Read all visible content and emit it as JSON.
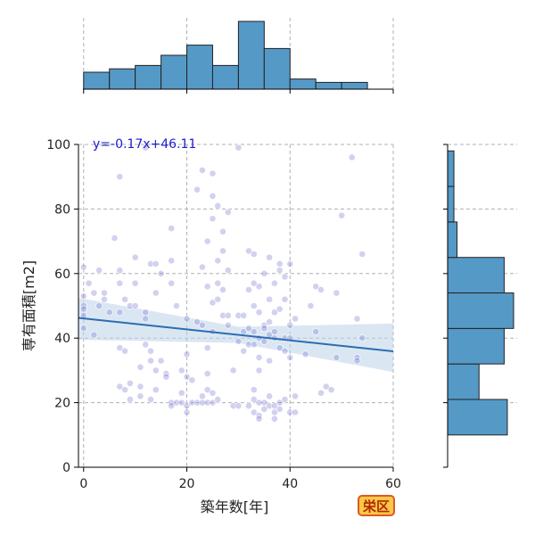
{
  "chart_data": {
    "type": "scatter",
    "xlabel": "築年数[年]",
    "ylabel": "専有面積[m2]",
    "xlim": [
      -1,
      60
    ],
    "ylim": [
      0,
      100
    ],
    "xticks": [
      "0",
      "20",
      "40",
      "60"
    ],
    "yticks": [
      "0",
      "20",
      "40",
      "60",
      "80",
      "100"
    ],
    "grid": true,
    "regression": {
      "label": "y=-0.17x+46.11",
      "slope": -0.17,
      "intercept": 46.11,
      "ci_band": [
        [
          -1,
          52.5,
          39.5
        ],
        [
          30,
          43.5,
          38.5
        ],
        [
          60,
          44.5,
          29.5
        ]
      ]
    },
    "marginal_x_hist": {
      "bins": [
        0,
        5,
        10,
        15,
        20,
        25,
        30,
        35,
        40,
        45,
        50,
        55
      ],
      "counts": [
        5,
        6,
        7,
        10,
        13,
        7,
        20,
        12,
        3,
        2,
        2
      ]
    },
    "marginal_y_hist": {
      "bins": [
        10,
        21,
        32,
        43,
        54,
        65,
        76,
        87,
        98
      ],
      "counts": [
        19,
        10,
        18,
        21,
        18,
        3,
        2,
        2
      ]
    },
    "points": [
      [
        0,
        62
      ],
      [
        0,
        53
      ],
      [
        0,
        50
      ],
      [
        0,
        49
      ],
      [
        0,
        47
      ],
      [
        0,
        43
      ],
      [
        1,
        57
      ],
      [
        2,
        41
      ],
      [
        2,
        54
      ],
      [
        3,
        61
      ],
      [
        3,
        50
      ],
      [
        4,
        54
      ],
      [
        4,
        52
      ],
      [
        5,
        48
      ],
      [
        6,
        71
      ],
      [
        7,
        90
      ],
      [
        7,
        61
      ],
      [
        7,
        57
      ],
      [
        7,
        48
      ],
      [
        7,
        37
      ],
      [
        7,
        25
      ],
      [
        8,
        52
      ],
      [
        8,
        36
      ],
      [
        8,
        24
      ],
      [
        9,
        50
      ],
      [
        9,
        26
      ],
      [
        9,
        21
      ],
      [
        10,
        65
      ],
      [
        10,
        57
      ],
      [
        10,
        50
      ],
      [
        11,
        31
      ],
      [
        11,
        25
      ],
      [
        11,
        22
      ],
      [
        12,
        99
      ],
      [
        12,
        48
      ],
      [
        12,
        46
      ],
      [
        12,
        38
      ],
      [
        13,
        63
      ],
      [
        13,
        36
      ],
      [
        13,
        33
      ],
      [
        13,
        21
      ],
      [
        14,
        63
      ],
      [
        14,
        54
      ],
      [
        14,
        30
      ],
      [
        14,
        24
      ],
      [
        15,
        60
      ],
      [
        15,
        33
      ],
      [
        16,
        29
      ],
      [
        16,
        28
      ],
      [
        17,
        74
      ],
      [
        17,
        64
      ],
      [
        17,
        57
      ],
      [
        17,
        20
      ],
      [
        17,
        19
      ],
      [
        18,
        50
      ],
      [
        18,
        20
      ],
      [
        19,
        30
      ],
      [
        19,
        23
      ],
      [
        19,
        20
      ],
      [
        20,
        46
      ],
      [
        20,
        35
      ],
      [
        20,
        28
      ],
      [
        20,
        19
      ],
      [
        20,
        17
      ],
      [
        21,
        27
      ],
      [
        21,
        20
      ],
      [
        22,
        86
      ],
      [
        22,
        45
      ],
      [
        22,
        20
      ],
      [
        23,
        92
      ],
      [
        23,
        62
      ],
      [
        23,
        44
      ],
      [
        23,
        22
      ],
      [
        23,
        20
      ],
      [
        24,
        70
      ],
      [
        24,
        56
      ],
      [
        24,
        37
      ],
      [
        24,
        29
      ],
      [
        24,
        24
      ],
      [
        24,
        20
      ],
      [
        25,
        91
      ],
      [
        25,
        84
      ],
      [
        25,
        77
      ],
      [
        25,
        51
      ],
      [
        25,
        42
      ],
      [
        25,
        23
      ],
      [
        25,
        20
      ],
      [
        26,
        81
      ],
      [
        26,
        64
      ],
      [
        26,
        57
      ],
      [
        26,
        52
      ],
      [
        26,
        21
      ],
      [
        27,
        73
      ],
      [
        27,
        67
      ],
      [
        27,
        55
      ],
      [
        27,
        47
      ],
      [
        28,
        79
      ],
      [
        28,
        61
      ],
      [
        28,
        47
      ],
      [
        28,
        44
      ],
      [
        29,
        30
      ],
      [
        29,
        19
      ],
      [
        30,
        99
      ],
      [
        30,
        47
      ],
      [
        30,
        39
      ],
      [
        30,
        19
      ],
      [
        31,
        47
      ],
      [
        31,
        42
      ],
      [
        31,
        36
      ],
      [
        32,
        67
      ],
      [
        32,
        55
      ],
      [
        32,
        43
      ],
      [
        32,
        38
      ],
      [
        32,
        19
      ],
      [
        33,
        66
      ],
      [
        33,
        57
      ],
      [
        33,
        50
      ],
      [
        33,
        42
      ],
      [
        33,
        38
      ],
      [
        33,
        24
      ],
      [
        33,
        21
      ],
      [
        33,
        17
      ],
      [
        34,
        56
      ],
      [
        34,
        48
      ],
      [
        34,
        40
      ],
      [
        34,
        34
      ],
      [
        34,
        30
      ],
      [
        34,
        20
      ],
      [
        34,
        16
      ],
      [
        34,
        15
      ],
      [
        35,
        60
      ],
      [
        35,
        44
      ],
      [
        35,
        43
      ],
      [
        35,
        39
      ],
      [
        35,
        20
      ],
      [
        35,
        18
      ],
      [
        36,
        65
      ],
      [
        36,
        52
      ],
      [
        36,
        45
      ],
      [
        36,
        41
      ],
      [
        36,
        33
      ],
      [
        36,
        22
      ],
      [
        36,
        19
      ],
      [
        37,
        57
      ],
      [
        37,
        48
      ],
      [
        37,
        42
      ],
      [
        37,
        40
      ],
      [
        37,
        19
      ],
      [
        37,
        17
      ],
      [
        37,
        15
      ],
      [
        38,
        63
      ],
      [
        38,
        61
      ],
      [
        38,
        49
      ],
      [
        38,
        37
      ],
      [
        38,
        20
      ],
      [
        38,
        18
      ],
      [
        39,
        59
      ],
      [
        39,
        52
      ],
      [
        39,
        40
      ],
      [
        39,
        36
      ],
      [
        39,
        21
      ],
      [
        40,
        63
      ],
      [
        40,
        44
      ],
      [
        40,
        40
      ],
      [
        40,
        34
      ],
      [
        40,
        17
      ],
      [
        41,
        46
      ],
      [
        41,
        22
      ],
      [
        41,
        17
      ],
      [
        43,
        35
      ],
      [
        44,
        50
      ],
      [
        45,
        56
      ],
      [
        45,
        42
      ],
      [
        46,
        55
      ],
      [
        46,
        23
      ],
      [
        47,
        25
      ],
      [
        48,
        24
      ],
      [
        49,
        54
      ],
      [
        49,
        34
      ],
      [
        50,
        78
      ],
      [
        52,
        96
      ],
      [
        53,
        46
      ],
      [
        53,
        34
      ],
      [
        53,
        33
      ],
      [
        54,
        66
      ],
      [
        54,
        40
      ]
    ]
  },
  "badge": {
    "label": "栄区"
  },
  "colors": {
    "point": "#7070d0",
    "line": "#2b6db1",
    "band": "#bcd4ea",
    "hist": "#5599c7",
    "label": "#1c1ccf"
  }
}
